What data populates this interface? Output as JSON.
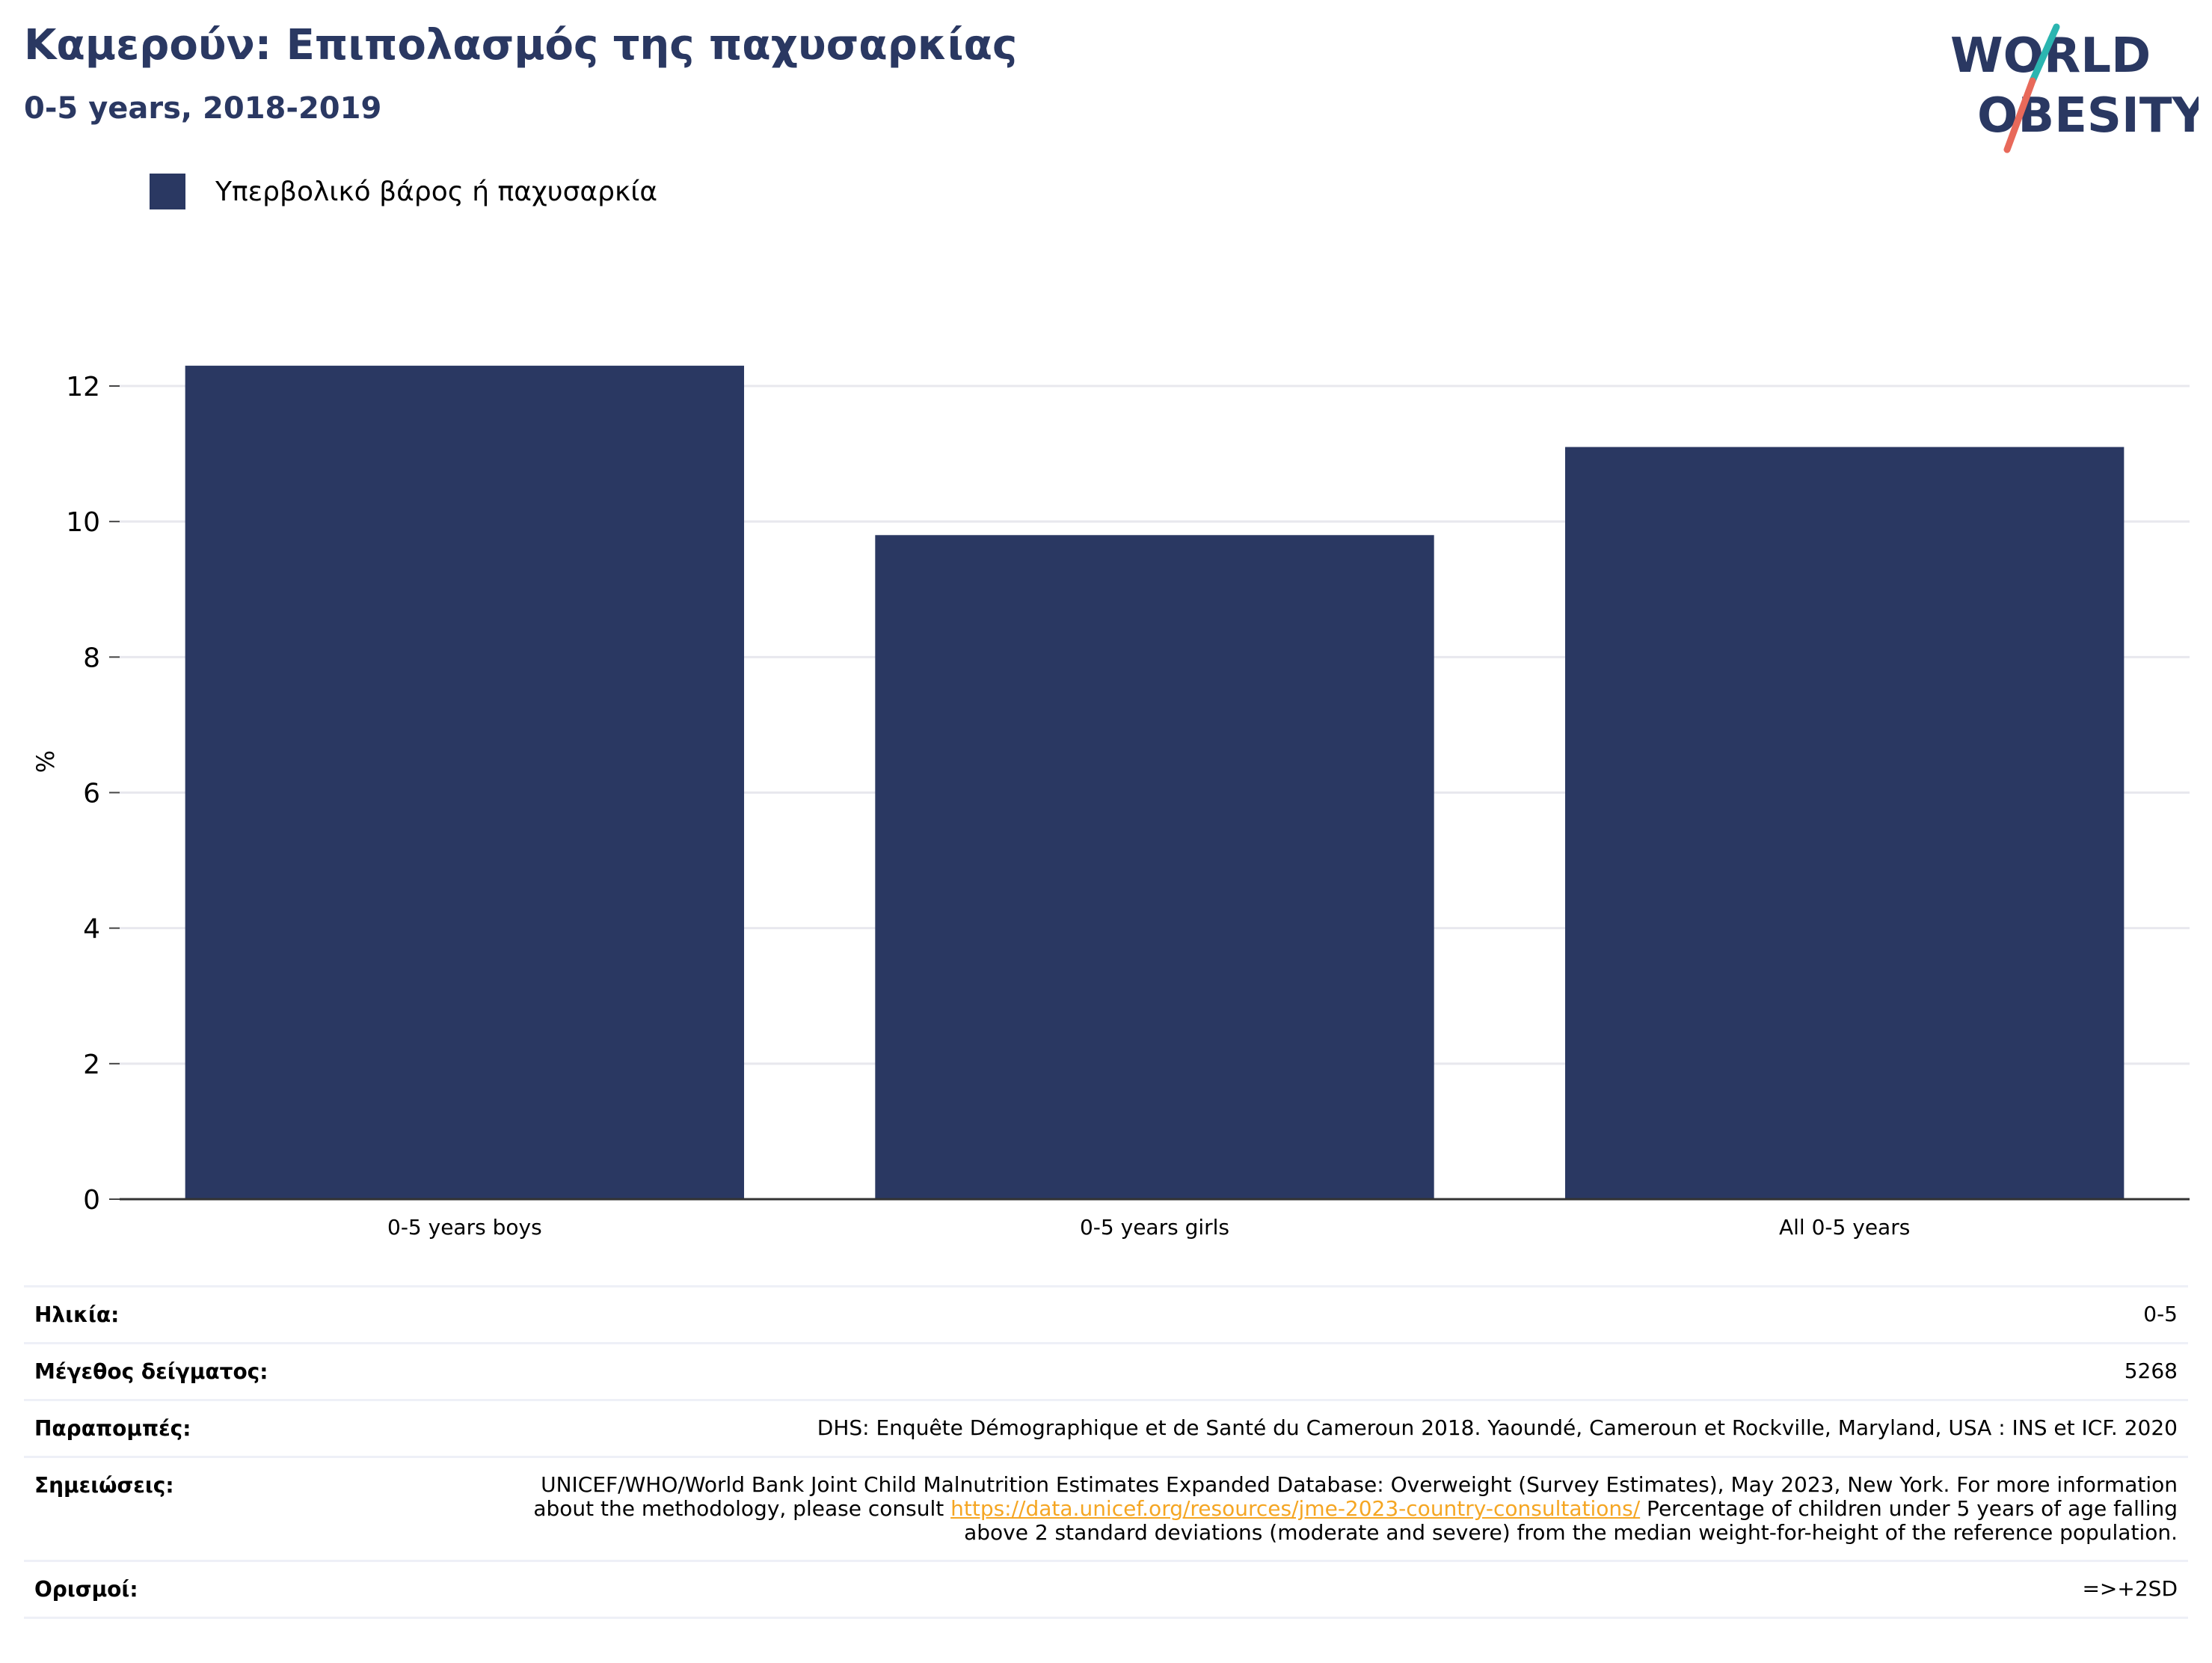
{
  "header": {
    "title": "Καμερούν: Επιπολασμός της παχυσαρκίας",
    "subtitle": "0-5 years, 2018-2019"
  },
  "logo": {
    "line1": "WORLD",
    "line2": "OBESITY",
    "colors": {
      "text": "#2a3862",
      "slash_top": "#2bb5b0",
      "slash_bottom": "#e8695a"
    }
  },
  "legend": {
    "label": "Υπερβολικό βάρος ή παχυσαρκία",
    "color": "#2a3862"
  },
  "chart_data": {
    "type": "bar",
    "categories": [
      "0-5 years boys",
      "0-5 years girls",
      "All 0-5 years"
    ],
    "series": [
      {
        "name": "Υπερβολικό βάρος ή παχυσαρκία",
        "values": [
          12.3,
          9.8,
          11.1
        ],
        "color": "#2a3862"
      }
    ],
    "ylabel": "%",
    "ylim": [
      0,
      13
    ],
    "yticks": [
      0,
      2,
      4,
      6,
      8,
      10,
      12
    ],
    "grid": true
  },
  "info": {
    "age": {
      "label": "Ηλικία:",
      "value": "0-5"
    },
    "sample": {
      "label": "Μέγεθος δείγματος:",
      "value": "5268"
    },
    "references": {
      "label": "Παραπομπές:",
      "value": "DHS: Enquête Démographique et de Santé du Cameroun 2018. Yaoundé, Cameroun et Rockville, Maryland, USA : INS et ICF. 2020"
    },
    "notes": {
      "label": "Σημειώσεις:",
      "text_before": "UNICEF/WHO/World Bank Joint Child Malnutrition Estimates Expanded Database: Overweight (Survey Estimates), May 2023, New York. For more information about the methodology, please consult ",
      "link": "https://data.unicef.org/resources/jme-2023-country-consultations/",
      "text_after": " Percentage of children under 5 years of age falling above 2 standard deviations (moderate and severe) from the median weight-for-height of the reference population."
    },
    "definitions": {
      "label": "Ορισμοί:",
      "value": "=>+2SD"
    }
  }
}
